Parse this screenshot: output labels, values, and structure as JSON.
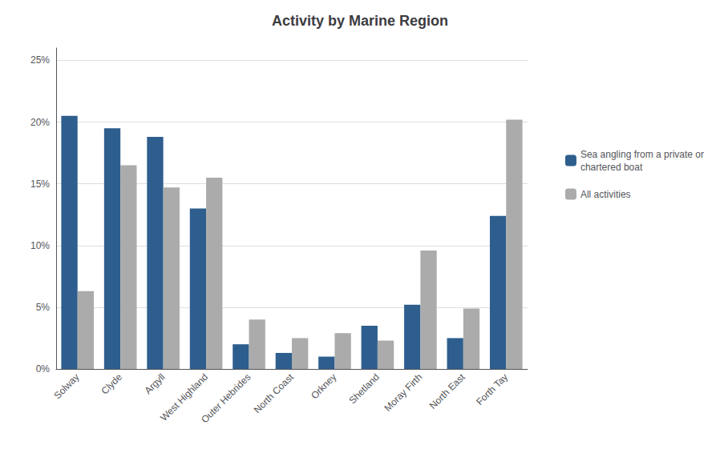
{
  "chart_data": {
    "type": "bar",
    "title": "Activity by Marine Region",
    "categories": [
      "Solway",
      "Clyde",
      "Argyll",
      "West Highland",
      "Outer Hebrides",
      "North Coast",
      "Orkney",
      "Shetland",
      "Moray Firth",
      "North East",
      "Forth Tay"
    ],
    "series": [
      {
        "name": "Sea angling from a private or\nchartered boat",
        "color": "#2E5E8E",
        "values": [
          0.205,
          0.195,
          0.188,
          0.13,
          0.02,
          0.013,
          0.01,
          0.035,
          0.052,
          0.025,
          0.124
        ]
      },
      {
        "name": "All activities",
        "color": "#ABABAB",
        "values": [
          0.063,
          0.165,
          0.147,
          0.155,
          0.04,
          0.025,
          0.029,
          0.023,
          0.096,
          0.049,
          0.202
        ]
      }
    ],
    "ylim": [
      0,
      0.26
    ],
    "yticks": [
      {
        "value": 0,
        "label": "0%"
      },
      {
        "value": 0.05,
        "label": "5%"
      },
      {
        "value": 0.1,
        "label": "10%"
      },
      {
        "value": 0.15,
        "label": "15%"
      },
      {
        "value": 0.2,
        "label": "20%"
      },
      {
        "value": 0.25,
        "label": "25%"
      }
    ],
    "grid": true,
    "legend": "right"
  }
}
